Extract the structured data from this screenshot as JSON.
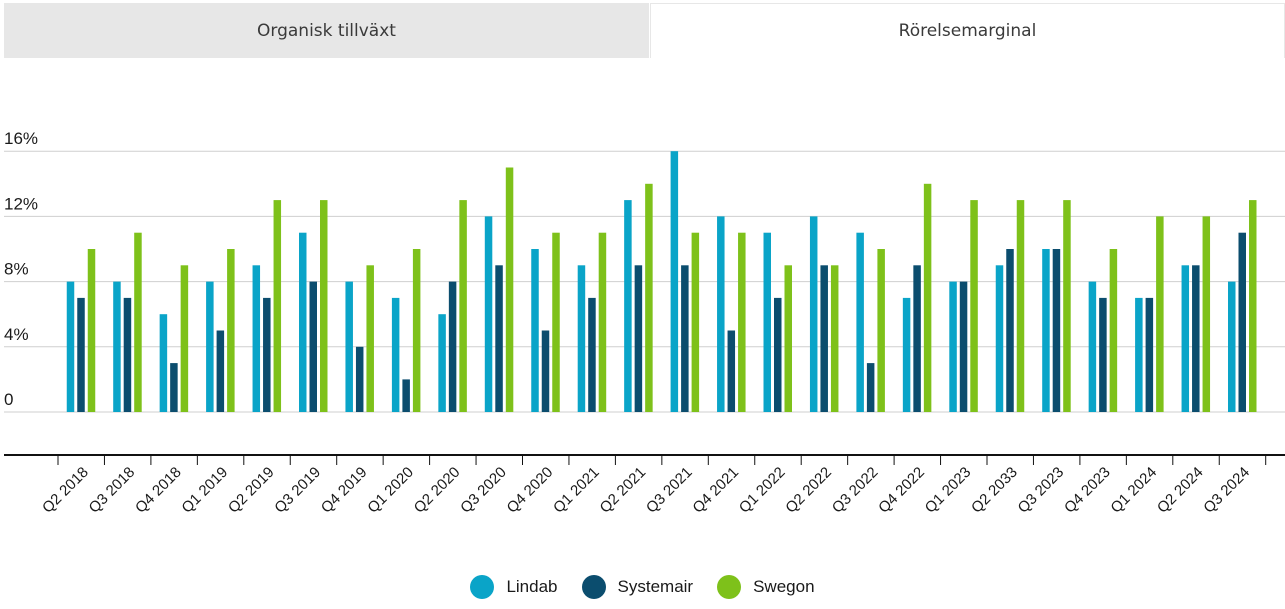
{
  "tabs": [
    {
      "label": "Organisk tillväxt",
      "active": false
    },
    {
      "label": "Rörelsemarginal",
      "active": true
    }
  ],
  "colors": {
    "Lindab": "#0aa4c8",
    "Systemair": "#0b4d6e",
    "Swegon": "#7ec11a"
  },
  "chart_data": {
    "type": "bar",
    "title": "",
    "xlabel": "",
    "ylabel": "",
    "ylim": [
      -4,
      16
    ],
    "yticks": [
      {
        "value": 0,
        "label": "0"
      },
      {
        "value": 4,
        "label": "4%"
      },
      {
        "value": 8,
        "label": "8%"
      },
      {
        "value": 12,
        "label": "12%"
      },
      {
        "value": 16,
        "label": "16%"
      }
    ],
    "grid": true,
    "legend": "bottom-center",
    "categories": [
      "Q2 2018",
      "Q3 2018",
      "Q4 2018",
      "Q1 2019",
      "Q2 2019",
      "Q3 2019",
      "Q4 2019",
      "Q1 2020",
      "Q2 2020",
      "Q3 2020",
      "Q4 2020",
      "Q1 2021",
      "Q2 2021",
      "Q3 2021",
      "Q4 2021",
      "Q1 2022",
      "Q2 2022",
      "Q3 2022",
      "Q4 2022",
      "Q1 2023",
      "Q2 2033",
      "Q3 2023",
      "Q4 2023",
      "Q1 2024",
      "Q2 2024",
      "Q3 2024"
    ],
    "series": [
      {
        "name": "Lindab",
        "values": [
          8,
          8,
          6,
          8,
          9,
          11,
          8,
          7,
          6,
          12,
          10,
          9,
          13,
          16,
          12,
          11,
          12,
          11,
          7,
          8,
          9,
          10,
          8,
          7,
          9,
          8
        ]
      },
      {
        "name": "Systemair",
        "values": [
          7,
          7,
          3,
          5,
          7,
          8,
          4,
          2,
          8,
          9,
          5,
          7,
          9,
          9,
          5,
          7,
          9,
          3,
          9,
          8,
          10,
          10,
          7,
          7,
          9,
          11
        ]
      },
      {
        "name": "Swegon",
        "values": [
          10,
          11,
          9,
          10,
          13,
          13,
          9,
          10,
          13,
          15,
          11,
          11,
          14,
          11,
          11,
          9,
          9,
          10,
          14,
          13,
          13,
          13,
          10,
          12,
          12,
          13
        ]
      }
    ]
  }
}
